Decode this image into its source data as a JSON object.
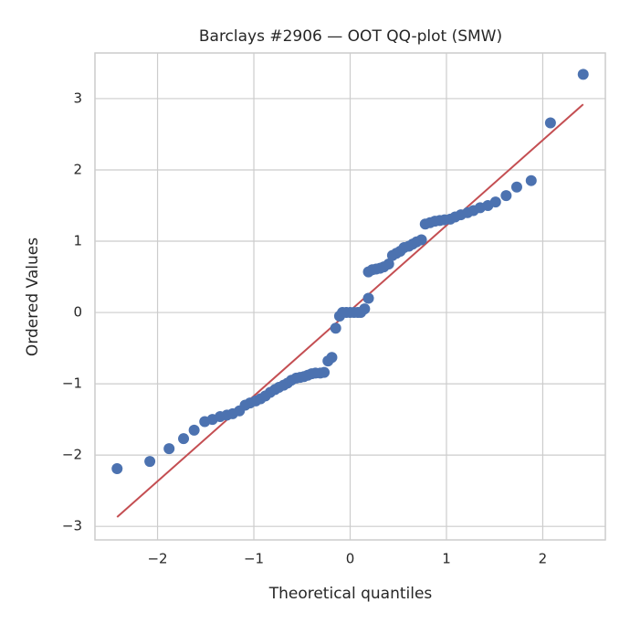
{
  "chart_data": {
    "type": "scatter",
    "title": "Barclays #2906 — OOT QQ-plot (SMW)",
    "x_label": "Theoretical quantiles",
    "y_label": "Ordered Values",
    "points": {
      "color": "#4c72b0",
      "x": [
        -2.42,
        -2.08,
        -1.88,
        -1.73,
        -1.62,
        -1.51,
        -1.43,
        -1.35,
        -1.28,
        -1.22,
        -1.15,
        -1.09,
        -1.04,
        -0.98,
        -0.93,
        -0.88,
        -0.83,
        -0.78,
        -0.74,
        -0.69,
        -0.65,
        -0.61,
        -0.56,
        -0.52,
        -0.48,
        -0.44,
        -0.4,
        -0.36,
        -0.31,
        -0.27,
        -0.23,
        -0.19,
        -0.15,
        -0.11,
        -0.08,
        -0.04,
        0.0,
        0.04,
        0.08,
        0.11,
        0.15,
        0.19,
        0.19,
        0.23,
        0.27,
        0.31,
        0.35,
        0.4,
        0.44,
        0.48,
        0.52,
        0.56,
        0.61,
        0.65,
        0.69,
        0.74,
        0.78,
        0.83,
        0.88,
        0.93,
        0.98,
        1.04,
        1.09,
        1.15,
        1.22,
        1.28,
        1.35,
        1.43,
        1.51,
        1.62,
        1.73,
        1.88,
        2.08,
        2.42
      ],
      "y": [
        -2.19,
        -2.09,
        -1.91,
        -1.77,
        -1.65,
        -1.53,
        -1.5,
        -1.46,
        -1.44,
        -1.42,
        -1.38,
        -1.3,
        -1.27,
        -1.24,
        -1.21,
        -1.17,
        -1.12,
        -1.08,
        -1.05,
        -1.02,
        -0.99,
        -0.95,
        -0.92,
        -0.91,
        -0.9,
        -0.88,
        -0.86,
        -0.85,
        -0.85,
        -0.84,
        -0.68,
        -0.63,
        -0.22,
        -0.05,
        0.0,
        0.0,
        0.0,
        0.0,
        0.0,
        0.0,
        0.05,
        0.2,
        0.57,
        0.6,
        0.61,
        0.62,
        0.64,
        0.68,
        0.8,
        0.83,
        0.86,
        0.91,
        0.93,
        0.96,
        0.99,
        1.02,
        1.24,
        1.26,
        1.28,
        1.29,
        1.3,
        1.31,
        1.34,
        1.37,
        1.4,
        1.43,
        1.47,
        1.5,
        1.55,
        1.64,
        1.76,
        1.85,
        2.66,
        3.34
      ]
    },
    "fit_line": {
      "color": "#c44e52",
      "x": [
        -2.42,
        2.42
      ],
      "y": [
        -2.87,
        2.92
      ]
    },
    "xlim": [
      -2.65,
      2.65
    ],
    "ylim": [
      -3.19,
      3.64
    ],
    "xticks": [
      {
        "value": -2,
        "label": "−2"
      },
      {
        "value": -1,
        "label": "−1"
      },
      0,
      1,
      2
    ],
    "yticks": [
      {
        "value": -3,
        "label": "−3"
      },
      {
        "value": -2,
        "label": "−2"
      },
      {
        "value": -1,
        "label": "−1"
      },
      0,
      1,
      2,
      3
    ],
    "grid": true
  }
}
